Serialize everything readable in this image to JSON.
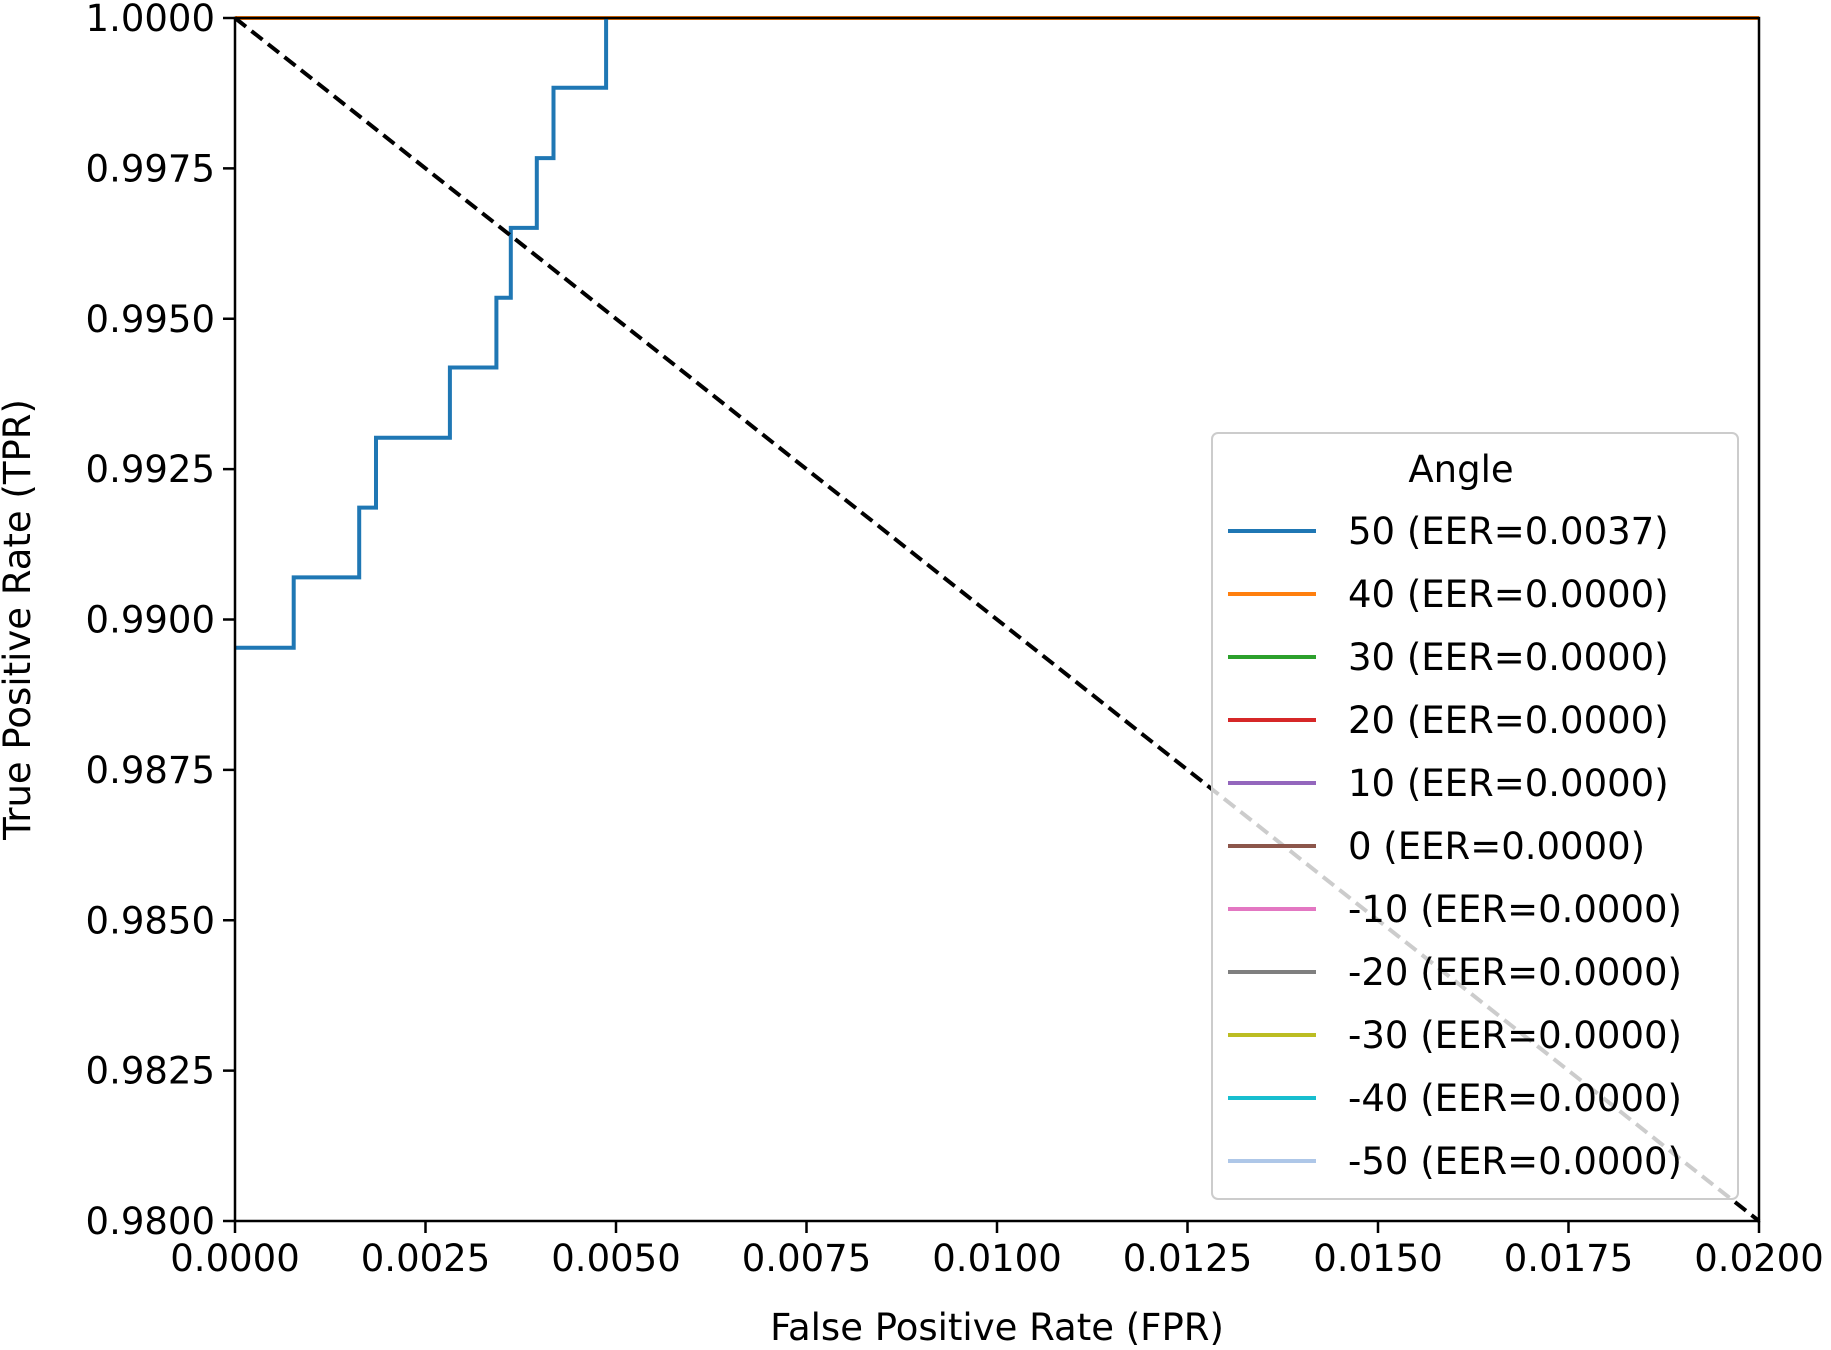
{
  "chart_data": {
    "type": "line",
    "title": "",
    "xlabel": "False Positive Rate (FPR)",
    "ylabel": "True Positive Rate (TPR)",
    "xlim": [
      0.0,
      0.02
    ],
    "ylim": [
      0.98,
      1.0
    ],
    "x_ticks": [
      "0.0000",
      "0.0025",
      "0.0050",
      "0.0075",
      "0.0100",
      "0.0125",
      "0.0150",
      "0.0175",
      "0.0200"
    ],
    "y_ticks": [
      "0.9800",
      "0.9825",
      "0.9850",
      "0.9875",
      "0.9900",
      "0.9925",
      "0.9950",
      "0.9975",
      "1.0000"
    ],
    "grid": false,
    "legend": {
      "title": "Angle",
      "position": "lower-right"
    },
    "reference_line": {
      "style": "dashed",
      "color": "#000000",
      "x": [
        0.0,
        0.02
      ],
      "y": [
        1.0,
        0.98
      ]
    },
    "series": [
      {
        "name": "50 (EER=0.0037)",
        "color": "#1f77b4",
        "x": [
          0.0,
          0.00077,
          0.00077,
          0.00163,
          0.00163,
          0.00185,
          0.00185,
          0.00282,
          0.00282,
          0.00343,
          0.00343,
          0.00362,
          0.00362,
          0.00396,
          0.00396,
          0.00418,
          0.00418,
          0.00487,
          0.00487
        ],
        "y": [
          0.98953,
          0.98953,
          0.9907,
          0.9907,
          0.99186,
          0.99186,
          0.99302,
          0.99302,
          0.99419,
          0.99419,
          0.99535,
          0.99535,
          0.99651,
          0.99651,
          0.99767,
          0.99767,
          0.99884,
          0.99884,
          1.0
        ]
      },
      {
        "name": "40 (EER=0.0000)",
        "color": "#ff7f0e",
        "x": [
          0.0,
          0.02
        ],
        "y": [
          1.0,
          1.0
        ]
      },
      {
        "name": "30 (EER=0.0000)",
        "color": "#2ca02c",
        "x": [
          0.0,
          0.02
        ],
        "y": [
          1.0,
          1.0
        ]
      },
      {
        "name": "20 (EER=0.0000)",
        "color": "#d62728",
        "x": [
          0.0,
          0.02
        ],
        "y": [
          1.0,
          1.0
        ]
      },
      {
        "name": "10 (EER=0.0000)",
        "color": "#9467bd",
        "x": [
          0.0,
          0.02
        ],
        "y": [
          1.0,
          1.0
        ]
      },
      {
        "name": "0 (EER=0.0000)",
        "color": "#8c564b",
        "x": [
          0.0,
          0.02
        ],
        "y": [
          1.0,
          1.0
        ]
      },
      {
        "name": "-10 (EER=0.0000)",
        "color": "#e377c2",
        "x": [
          0.0,
          0.02
        ],
        "y": [
          1.0,
          1.0
        ]
      },
      {
        "name": "-20 (EER=0.0000)",
        "color": "#7f7f7f",
        "x": [
          0.0,
          0.02
        ],
        "y": [
          1.0,
          1.0
        ]
      },
      {
        "name": "-30 (EER=0.0000)",
        "color": "#bcbd22",
        "x": [
          0.0,
          0.02
        ],
        "y": [
          1.0,
          1.0
        ]
      },
      {
        "name": "-40 (EER=0.0000)",
        "color": "#17becf",
        "x": [
          0.0,
          0.02
        ],
        "y": [
          1.0,
          1.0
        ]
      },
      {
        "name": "-50 (EER=0.0000)",
        "color": "#aec7e8",
        "x": [
          0.0,
          0.02
        ],
        "y": [
          1.0,
          1.0
        ]
      }
    ]
  }
}
